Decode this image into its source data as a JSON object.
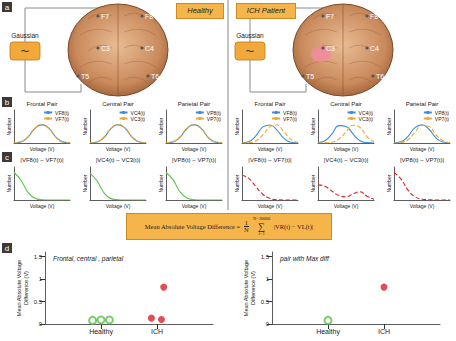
{
  "panel_labels": [
    "a",
    "b",
    "c",
    "d"
  ],
  "groups": {
    "healthy": "Healthy",
    "ich": "ICH Patient"
  },
  "source": {
    "symbol": "~",
    "label": "Gaussian"
  },
  "electrodes": [
    "F7",
    "F8",
    "C3",
    "C4",
    "T5",
    "T6"
  ],
  "formula": {
    "lhs": "Mean Absolute Voltage Difference",
    "equals": "=",
    "numerator": "1",
    "denominator": "N",
    "sum_symbol": "∑",
    "sum_upper": "N=30000",
    "sum_lower": "i=1",
    "body": "|VR(t) − VL(t)|"
  },
  "chart_data": [
    {
      "type": "line",
      "title": "Frontal Pair",
      "x_label": "Voltage (V)",
      "y_label": "Number",
      "tick_labels": false,
      "grid": false,
      "legend": "upper right",
      "xlim": [
        -4,
        4
      ],
      "ylim": [
        0,
        1.8
      ],
      "x": [
        -4,
        -3,
        -2,
        -1,
        0,
        1,
        2,
        3,
        4
      ],
      "series": [
        {
          "name": "VF8(t)",
          "color": "#3a8fd6",
          "line_style": "solid",
          "values": [
            0.01,
            0.06,
            0.32,
            0.8,
            1.0,
            0.8,
            0.32,
            0.06,
            0.01
          ]
        },
        {
          "name": "VF7(t)",
          "color": "#f0a830",
          "line_style": "dashed",
          "values": [
            0.01,
            0.07,
            0.35,
            0.82,
            0.98,
            0.77,
            0.3,
            0.05,
            0.01
          ]
        }
      ]
    },
    {
      "type": "line",
      "title": "Central Pair",
      "x_label": "Voltage (V)",
      "y_label": "Number",
      "tick_labels": false,
      "grid": false,
      "legend": "upper right",
      "xlim": [
        -4,
        4
      ],
      "ylim": [
        0,
        1.8
      ],
      "x": [
        -4,
        -3,
        -2,
        -1,
        0,
        1,
        2,
        3,
        4
      ],
      "series": [
        {
          "name": "VC4(t)",
          "color": "#3a8fd6",
          "line_style": "solid",
          "values": [
            0.01,
            0.05,
            0.3,
            0.78,
            1.0,
            0.82,
            0.33,
            0.07,
            0.01
          ]
        },
        {
          "name": "VC3(t)",
          "color": "#f0a830",
          "line_style": "dashed",
          "values": [
            0.01,
            0.06,
            0.33,
            0.8,
            0.99,
            0.8,
            0.31,
            0.06,
            0.01
          ]
        }
      ]
    },
    {
      "type": "line",
      "title": "Parietal Pair",
      "x_label": "Voltage (V)",
      "y_label": "Number",
      "tick_labels": false,
      "grid": false,
      "legend": "upper right",
      "xlim": [
        -4,
        4
      ],
      "ylim": [
        0,
        1.8
      ],
      "x": [
        -4,
        -3,
        -2,
        -1,
        0,
        1,
        2,
        3,
        4
      ],
      "series": [
        {
          "name": "VP8(t)",
          "color": "#3a8fd6",
          "line_style": "solid",
          "values": [
            0.01,
            0.06,
            0.31,
            0.79,
            1.0,
            0.81,
            0.32,
            0.06,
            0.01
          ]
        },
        {
          "name": "VP7(t)",
          "color": "#f0a830",
          "line_style": "dashed",
          "values": [
            0.01,
            0.07,
            0.34,
            0.81,
            0.98,
            0.78,
            0.3,
            0.05,
            0.01
          ]
        }
      ]
    },
    {
      "type": "line",
      "title": "Frontal Pair",
      "x_label": "Voltage (V)",
      "y_label": "Number",
      "tick_labels": false,
      "grid": false,
      "legend": "upper right",
      "xlim": [
        -4,
        4
      ],
      "ylim": [
        0,
        1.8
      ],
      "x": [
        -4,
        -3,
        -2,
        -1,
        0,
        1,
        2,
        3,
        4
      ],
      "series": [
        {
          "name": "VF8(t)",
          "color": "#3a8fd6",
          "line_style": "solid",
          "values": [
            0.01,
            0.08,
            0.4,
            0.88,
            0.98,
            0.7,
            0.25,
            0.04,
            0.01
          ]
        },
        {
          "name": "VF7(t)",
          "color": "#f0a830",
          "line_style": "dashed",
          "values": [
            0,
            0.02,
            0.12,
            0.45,
            0.88,
            0.98,
            0.6,
            0.2,
            0.03
          ]
        }
      ]
    },
    {
      "type": "line",
      "title": "Central Pair",
      "x_label": "Voltage (V)",
      "y_label": "Number",
      "tick_labels": false,
      "grid": false,
      "legend": "upper right",
      "xlim": [
        -4,
        4
      ],
      "ylim": [
        0,
        1.8
      ],
      "x": [
        -4,
        -3,
        -2,
        -1,
        0,
        1,
        2,
        3,
        4
      ],
      "series": [
        {
          "name": "VC4(t)",
          "color": "#3a8fd6",
          "line_style": "solid",
          "values": [
            0.02,
            0.12,
            0.5,
            0.95,
            0.9,
            0.5,
            0.12,
            0.02,
            0
          ]
        },
        {
          "name": "VC3(t)",
          "color": "#f0a830",
          "line_style": "dashed",
          "values": [
            0,
            0.01,
            0.05,
            0.22,
            0.6,
            0.97,
            0.85,
            0.35,
            0.06
          ]
        }
      ]
    },
    {
      "type": "line",
      "title": "Parietal Pair",
      "x_label": "Voltage (V)",
      "y_label": "Number",
      "tick_labels": false,
      "grid": false,
      "legend": "upper right",
      "xlim": [
        -4,
        4
      ],
      "ylim": [
        0,
        1.8
      ],
      "x": [
        -4,
        -3,
        -2,
        -1,
        0,
        1,
        2,
        3,
        4
      ],
      "series": [
        {
          "name": "VP8(t)",
          "color": "#3a8fd6",
          "line_style": "solid",
          "values": [
            0.01,
            0.07,
            0.36,
            0.84,
            0.99,
            0.75,
            0.28,
            0.05,
            0.01
          ]
        },
        {
          "name": "VP7(t)",
          "color": "#f0a830",
          "line_style": "dashed",
          "values": [
            0,
            0.03,
            0.18,
            0.58,
            0.96,
            0.9,
            0.45,
            0.12,
            0.02
          ]
        }
      ]
    },
    {
      "type": "line",
      "title": "|VF8(t) − VF7(t)|",
      "x_label": "Voltage (V)",
      "y_label": "Number",
      "tick_labels": false,
      "grid": false,
      "xlim": [
        0,
        4
      ],
      "ylim": [
        0,
        1.2
      ],
      "x": [
        0,
        0.5,
        1,
        1.5,
        2,
        2.5,
        3,
        3.5,
        4
      ],
      "series": [
        {
          "color": "#5cbf4a",
          "line_style": "solid",
          "values": [
            1.0,
            0.72,
            0.28,
            0.06,
            0.01,
            0,
            0,
            0,
            0
          ]
        }
      ]
    },
    {
      "type": "line",
      "title": "|VC4(t) − VC3(t)|",
      "x_label": "Voltage (V)",
      "y_label": "Number",
      "tick_labels": false,
      "grid": false,
      "xlim": [
        0,
        4
      ],
      "ylim": [
        0,
        1.2
      ],
      "x": [
        0,
        0.5,
        1,
        1.5,
        2,
        2.5,
        3,
        3.5,
        4
      ],
      "series": [
        {
          "color": "#5cbf4a",
          "line_style": "solid",
          "values": [
            0.98,
            0.7,
            0.26,
            0.05,
            0.01,
            0,
            0,
            0,
            0
          ]
        }
      ]
    },
    {
      "type": "line",
      "title": "|VP8(t) − VP7(t)|",
      "x_label": "Voltage (V)",
      "y_label": "Number",
      "tick_labels": false,
      "grid": false,
      "xlim": [
        0,
        4
      ],
      "ylim": [
        0,
        1.2
      ],
      "x": [
        0,
        0.5,
        1,
        1.5,
        2,
        2.5,
        3,
        3.5,
        4
      ],
      "series": [
        {
          "color": "#5cbf4a",
          "line_style": "solid",
          "values": [
            1.0,
            0.74,
            0.3,
            0.07,
            0.01,
            0,
            0,
            0,
            0
          ]
        }
      ]
    },
    {
      "type": "line",
      "title": "|VF8(t) − VF7(t)|",
      "x_label": "Voltage (V)",
      "y_label": "Number",
      "tick_labels": false,
      "grid": false,
      "xlim": [
        0,
        4
      ],
      "ylim": [
        0,
        1.2
      ],
      "x": [
        0,
        0.5,
        1,
        1.5,
        2,
        2.5,
        3,
        3.5,
        4
      ],
      "series": [
        {
          "color": "#d8232a",
          "line_style": "dashed",
          "values": [
            0.9,
            0.78,
            0.48,
            0.2,
            0.06,
            0.01,
            0,
            0,
            0
          ]
        }
      ]
    },
    {
      "type": "line",
      "title": "|VC4(t) − VC3(t)|",
      "x_label": "Voltage (V)",
      "y_label": "Number",
      "tick_labels": false,
      "grid": false,
      "xlim": [
        0,
        4
      ],
      "ylim": [
        0,
        1.2
      ],
      "x": [
        0,
        0.5,
        1,
        1.5,
        2,
        2.5,
        3,
        3.5,
        4
      ],
      "series": [
        {
          "color": "#d8232a",
          "line_style": "dashed",
          "values": [
            0.55,
            0.5,
            0.32,
            0.16,
            0.12,
            0.22,
            0.3,
            0.14,
            0.03
          ]
        }
      ]
    },
    {
      "type": "line",
      "title": "|VP8(t) − VP7(t)|",
      "x_label": "Voltage (V)",
      "y_label": "Number",
      "tick_labels": false,
      "grid": false,
      "xlim": [
        0,
        4
      ],
      "ylim": [
        0,
        1.2
      ],
      "x": [
        0,
        0.5,
        1,
        1.5,
        2,
        2.5,
        3,
        3.5,
        4
      ],
      "series": [
        {
          "color": "#d8232a",
          "line_style": "dashed",
          "values": [
            1.0,
            0.76,
            0.36,
            0.12,
            0.03,
            0.01,
            0,
            0,
            0
          ]
        }
      ]
    },
    {
      "type": "scatter",
      "annotation": "Frontal, central , parietal",
      "y_label": "Mean Absolute Voltage\nDifference (V)",
      "grid": false,
      "xlim": [
        0,
        3
      ],
      "xticks": [
        {
          "value": 1,
          "label": "Healthy"
        },
        {
          "value": 2,
          "label": "ICH"
        }
      ],
      "ylim": [
        0,
        1.6
      ],
      "yticks": [
        0,
        0.5,
        1,
        1.5
      ],
      "series": [
        {
          "color": "#5cbf4a",
          "marker": "open_circle",
          "x": [
            0.85,
            1,
            1.15
          ],
          "values": [
            0.08,
            0.09,
            0.09
          ]
        },
        {
          "color": "#d8232a",
          "marker": "filled_circle",
          "x": [
            2.12,
            1.9,
            2.08
          ],
          "values": [
            0.82,
            0.13,
            0.1
          ]
        }
      ]
    },
    {
      "type": "scatter",
      "annotation": "pair with Max diff",
      "y_label": "Mean Absolute Voltage\nDifference (V)",
      "grid": false,
      "xlim": [
        0,
        3
      ],
      "xticks": [
        {
          "value": 1,
          "label": "Healthy"
        },
        {
          "value": 2,
          "label": "ICH"
        }
      ],
      "ylim": [
        0,
        1.6
      ],
      "yticks": [
        0,
        0.5,
        1,
        1.5
      ],
      "series": [
        {
          "color": "#5cbf4a",
          "marker": "open_circle",
          "x": [
            1
          ],
          "values": [
            0.08
          ]
        },
        {
          "color": "#d8232a",
          "marker": "filled_circle",
          "x": [
            2
          ],
          "values": [
            0.82
          ]
        }
      ]
    }
  ]
}
